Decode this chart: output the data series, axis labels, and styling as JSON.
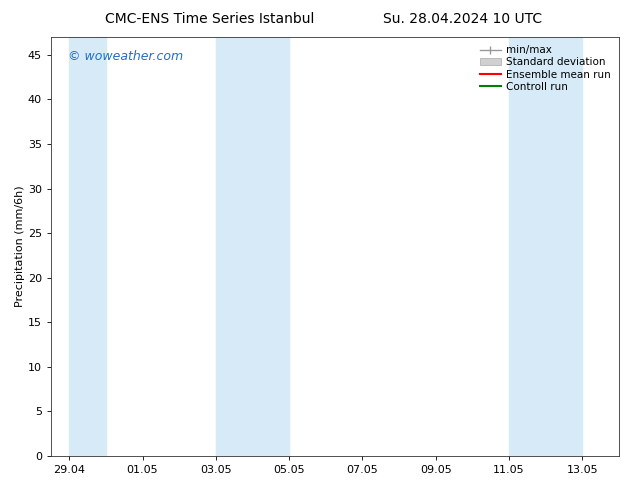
{
  "title_left": "CMC-ENS Time Series Istanbul",
  "title_right": "Su. 28.04.2024 10 UTC",
  "ylabel": "Precipitation (mm/6h)",
  "watermark": "© woweather.com",
  "watermark_color": "#1e6fcc",
  "background_color": "#ffffff",
  "plot_bg_color": "#ffffff",
  "ylim": [
    0,
    47
  ],
  "yticks": [
    0,
    5,
    10,
    15,
    20,
    25,
    30,
    35,
    40,
    45
  ],
  "xtick_labels": [
    "29.04",
    "01.05",
    "03.05",
    "05.05",
    "07.05",
    "09.05",
    "11.05",
    "13.05"
  ],
  "shade_bands": [
    {
      "x_start": 0,
      "x_end": 1,
      "color": "#d6eaf8",
      "alpha": 1.0
    },
    {
      "x_start": 4,
      "x_end": 6,
      "color": "#d6eaf8",
      "alpha": 1.0
    },
    {
      "x_start": 12,
      "x_end": 14,
      "color": "#d6eaf8",
      "alpha": 1.0
    }
  ],
  "x_positions": [
    0,
    2,
    4,
    6,
    8,
    10,
    12,
    14
  ],
  "xmin": -0.5,
  "xmax": 15.0,
  "legend_labels": [
    "min/max",
    "Standard deviation",
    "Ensemble mean run",
    "Controll run"
  ],
  "legend_colors": [
    "#aaaaaa",
    "#cccccc",
    "#ff0000",
    "#008000"
  ],
  "title_fontsize": 10,
  "axis_fontsize": 8,
  "legend_fontsize": 7.5,
  "watermark_fontsize": 9,
  "ylabel_fontsize": 8
}
